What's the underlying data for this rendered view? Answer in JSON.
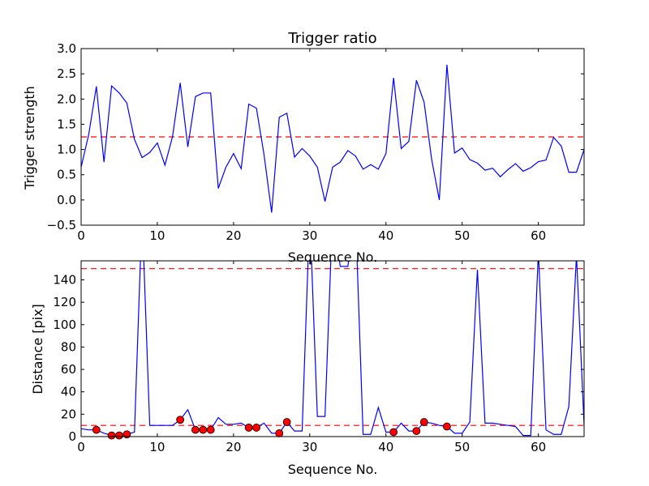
{
  "chart_data": [
    {
      "type": "line",
      "title": "Trigger ratio",
      "xlabel": "Sequence No.",
      "ylabel": "Trigger strength",
      "xlim": [
        0,
        66
      ],
      "ylim": [
        -0.5,
        3.0
      ],
      "xticks": [
        0,
        10,
        20,
        30,
        40,
        50,
        60
      ],
      "yticks": [
        -0.5,
        0.0,
        0.5,
        1.0,
        1.5,
        2.0,
        2.5,
        3.0
      ],
      "ytick_labels": [
        "−0.5",
        "0.0",
        "0.5",
        "1.0",
        "1.5",
        "2.0",
        "2.5",
        "3.0"
      ],
      "grid": false,
      "line_color": "#0000ff",
      "threshold": {
        "value": 1.25,
        "color": "#ff0000",
        "style": "dashed"
      },
      "x": [
        0,
        1,
        2,
        3,
        4,
        5,
        6,
        7,
        8,
        9,
        10,
        11,
        12,
        13,
        14,
        15,
        16,
        17,
        18,
        19,
        20,
        21,
        22,
        23,
        24,
        25,
        26,
        27,
        28,
        29,
        30,
        31,
        32,
        33,
        34,
        35,
        36,
        37,
        38,
        39,
        40,
        41,
        42,
        43,
        44,
        45,
        46,
        47,
        48,
        49,
        50,
        51,
        52,
        53,
        54,
        55,
        56,
        57,
        58,
        59,
        60,
        61,
        62,
        63,
        64,
        65,
        66
      ],
      "y": [
        0.65,
        1.3,
        2.25,
        0.75,
        2.26,
        2.12,
        1.92,
        1.2,
        0.84,
        0.94,
        1.13,
        0.69,
        1.26,
        2.32,
        1.05,
        2.05,
        2.12,
        2.12,
        0.23,
        0.65,
        0.92,
        0.62,
        1.9,
        1.82,
        0.9,
        -0.25,
        1.64,
        1.72,
        0.85,
        1.02,
        0.87,
        0.65,
        -0.03,
        0.65,
        0.75,
        0.98,
        0.87,
        0.61,
        0.7,
        0.61,
        0.92,
        2.42,
        1.02,
        1.16,
        2.37,
        1.94,
        0.8,
        0.0,
        2.68,
        0.93,
        1.03,
        0.8,
        0.73,
        0.59,
        0.63,
        0.46,
        0.6,
        0.72,
        0.57,
        0.64,
        0.76,
        0.79,
        1.24,
        1.07,
        0.55,
        0.55,
        1.0
      ]
    },
    {
      "type": "line",
      "title": "",
      "xlabel": "Sequence No.",
      "ylabel": "Distance [pix]",
      "xlim": [
        0,
        66
      ],
      "ylim": [
        0,
        157
      ],
      "xticks": [
        0,
        10,
        20,
        30,
        40,
        50,
        60
      ],
      "yticks": [
        0,
        20,
        40,
        60,
        80,
        100,
        120,
        140
      ],
      "ytick_labels": [
        "0",
        "20",
        "40",
        "60",
        "80",
        "100",
        "120",
        "140"
      ],
      "grid": false,
      "line_color": "#0000ff",
      "thresholds": [
        {
          "value": 150,
          "color": "#ff0000",
          "style": "dashed"
        },
        {
          "value": 10,
          "color": "#ff0000",
          "style": "dashed"
        }
      ],
      "x": [
        0,
        1,
        2,
        3,
        4,
        5,
        6,
        7,
        8,
        9,
        10,
        11,
        12,
        13,
        14,
        15,
        16,
        17,
        18,
        19,
        20,
        21,
        22,
        23,
        24,
        25,
        26,
        27,
        28,
        29,
        30,
        31,
        32,
        33,
        34,
        35,
        36,
        37,
        38,
        39,
        40,
        41,
        42,
        43,
        44,
        45,
        46,
        47,
        48,
        49,
        50,
        51,
        52,
        53,
        54,
        55,
        56,
        57,
        58,
        59,
        60,
        61,
        62,
        63,
        64,
        65,
        66
      ],
      "y": [
        7,
        6,
        6,
        3,
        1,
        1,
        2,
        4,
        200,
        10,
        10,
        10,
        10,
        15,
        24,
        6,
        6,
        6,
        17,
        11,
        11,
        12,
        8,
        8,
        12,
        3,
        3,
        13,
        5,
        5,
        200,
        18,
        18,
        200,
        152,
        152,
        200,
        2,
        2,
        26,
        4,
        4,
        12,
        5,
        5,
        13,
        12,
        10,
        9,
        3,
        3,
        13,
        149,
        12,
        12,
        11,
        10,
        9,
        1,
        1,
        165,
        6,
        2,
        2,
        27,
        162,
        10
      ]
    }
  ],
  "scatter_markers": {
    "color": "#ff0000",
    "x": [
      2,
      4,
      5,
      6,
      13,
      15,
      16,
      17,
      22,
      23,
      26,
      27,
      41,
      44,
      45,
      48
    ],
    "y": [
      6,
      1,
      1,
      2,
      15,
      6,
      6,
      6,
      8,
      8,
      3,
      13,
      4,
      5,
      13,
      9
    ]
  }
}
